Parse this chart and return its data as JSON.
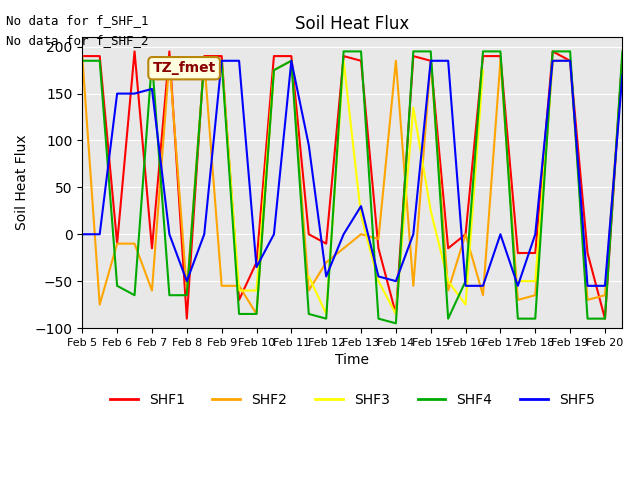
{
  "title": "Soil Heat Flux",
  "ylabel": "Soil Heat Flux",
  "xlabel": "Time",
  "ylim": [
    -100,
    210
  ],
  "yticks": [
    -100,
    -50,
    0,
    50,
    100,
    150,
    200
  ],
  "text_lines": [
    "No data for f_SHF_1",
    "No data for f_SHF_2"
  ],
  "annotation_box": "TZ_fmet",
  "legend_labels": [
    "SHF1",
    "SHF2",
    "SHF3",
    "SHF4",
    "SHF5"
  ],
  "legend_colors": [
    "#ff0000",
    "#ffa500",
    "#ffff00",
    "#00aa00",
    "#0000ff"
  ],
  "xtick_labels": [
    "Feb 5",
    "Feb 6",
    "Feb 7",
    "Feb 8",
    "Feb 9",
    "Feb 10",
    "Feb 11",
    "Feb 12",
    "Feb 13",
    "Feb 14",
    "Feb 15",
    "Feb 16",
    "Feb 17",
    "Feb 18",
    "Feb 19",
    "Feb 20"
  ],
  "bg_color": "#e8e8e8",
  "shf1": [
    190,
    190,
    -10,
    195,
    -15,
    195,
    -90,
    190,
    190,
    -70,
    -30,
    190,
    190,
    0,
    -10,
    190,
    185,
    -15,
    -85,
    190,
    185,
    -15,
    0,
    190,
    190,
    -20,
    -20,
    195,
    185,
    -20,
    -90,
    190
  ],
  "shf2": [
    190,
    -75,
    -10,
    -10,
    -60,
    185,
    -60,
    185,
    -55,
    -55,
    -85,
    175,
    185,
    -60,
    -30,
    -15,
    0,
    -5,
    185,
    -55,
    185,
    -60,
    0,
    -65,
    185,
    -70,
    -65,
    185,
    185,
    -70,
    -65,
    185
  ],
  "shf3": [
    null,
    null,
    null,
    null,
    null,
    null,
    null,
    null,
    185,
    -60,
    -60,
    175,
    null,
    -45,
    -85,
    185,
    20,
    -50,
    -85,
    135,
    25,
    -50,
    -75,
    175,
    null,
    -50,
    -50,
    185,
    null,
    null,
    null,
    null
  ],
  "shf4": [
    185,
    185,
    -55,
    -65,
    185,
    -65,
    -65,
    185,
    185,
    -85,
    -85,
    175,
    185,
    -85,
    -90,
    195,
    195,
    -90,
    -95,
    195,
    195,
    -90,
    -50,
    195,
    195,
    -90,
    -90,
    195,
    195,
    -90,
    -90,
    195
  ],
  "shf5": [
    0,
    0,
    150,
    150,
    155,
    0,
    -50,
    0,
    185,
    185,
    -35,
    0,
    185,
    95,
    -45,
    0,
    30,
    -45,
    -50,
    0,
    185,
    185,
    -55,
    -55,
    0,
    -55,
    0,
    185,
    185,
    -55,
    -55,
    170
  ],
  "x": [
    5.0,
    5.5,
    6.0,
    6.5,
    7.0,
    7.5,
    8.0,
    8.5,
    9.0,
    9.5,
    10.0,
    10.5,
    11.0,
    11.5,
    12.0,
    12.5,
    13.0,
    13.5,
    14.0,
    14.5,
    15.0,
    15.5,
    16.0,
    16.5,
    17.0,
    17.5,
    18.0,
    18.5,
    19.0,
    19.5,
    20.0,
    20.5
  ]
}
